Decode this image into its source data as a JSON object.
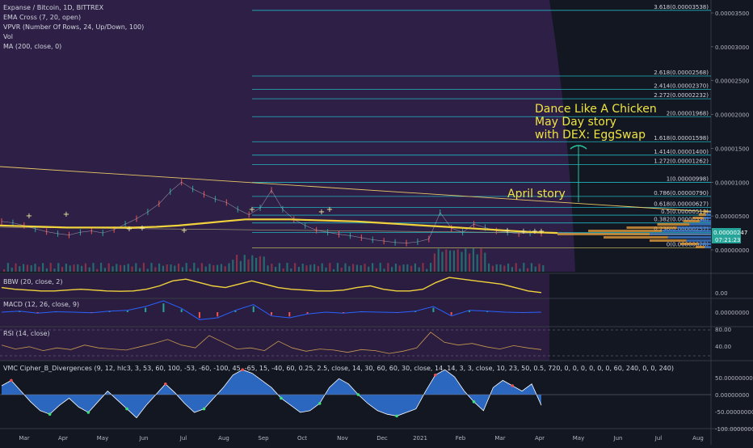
{
  "chart_data": {
    "type": "line",
    "symbol_title": "Expanse / Bitcoin, 1D, BITTREX",
    "indicators": [
      "EMA Cross (7, 20, open)",
      "VPVR (Number Of Rows, 24, Up/Down, 100)",
      "Vol",
      "MA (200, close, 0)"
    ],
    "x_ticks": [
      "Mar",
      "Apr",
      "May",
      "Jun",
      "Jul",
      "Aug",
      "Sep",
      "Oct",
      "Nov",
      "Dec",
      "2021",
      "Feb",
      "Mar",
      "Apr",
      "May",
      "Jun",
      "Jul",
      "Aug"
    ],
    "y_ticks": [
      "0.00003500",
      "0.00003000",
      "0.00002500",
      "0.00002000",
      "0.00001500",
      "0.00001000",
      "0.00000500",
      "0.00000000"
    ],
    "price_label": "0.00000247",
    "countdown": "07:21:23",
    "fib_levels": [
      {
        "label": "3.618(0.00003538)",
        "value": 3.538e-05
      },
      {
        "label": "2.618(0.00002568)",
        "value": 2.568e-05
      },
      {
        "label": "2.414(0.00002370)",
        "value": 2.37e-05
      },
      {
        "label": "2.272(0.00002232)",
        "value": 2.232e-05
      },
      {
        "label": "2(0.00001968)",
        "value": 1.968e-05
      },
      {
        "label": "1.618(0.00001598)",
        "value": 1.598e-05
      },
      {
        "label": "1.414(0.00001400)",
        "value": 1.4e-05
      },
      {
        "label": "1.272(0.00001262)",
        "value": 1.262e-05
      },
      {
        "label": "1(0.00000998)",
        "value": 9.98e-06
      },
      {
        "label": "0.786(0.00000790)",
        "value": 7.9e-06
      },
      {
        "label": "0.618(0.00000627)",
        "value": 6.27e-06
      },
      {
        "label": "0.5(0.00000513)",
        "value": 5.13e-06
      },
      {
        "label": "0.382(0.00000398)",
        "value": 3.98e-06
      },
      {
        "label": "0.236(0.00000257)",
        "value": 2.57e-06
      },
      {
        "label": "0(0.00000028)",
        "value": 2.8e-07
      }
    ],
    "annotations": [
      {
        "lines": [
          "Dance Like A Chicken",
          "May Day story",
          "with DEX: EggSwap"
        ]
      },
      {
        "lines": [
          "April story"
        ]
      }
    ],
    "price_series": [
      4.2,
      4.0,
      3.6,
      3.1,
      2.7,
      2.4,
      2.2,
      2.6,
      2.8,
      2.5,
      3.0,
      3.8,
      4.6,
      5.6,
      6.8,
      8.6,
      10.0,
      9.0,
      8.2,
      7.5,
      7.0,
      6.0,
      5.2,
      6.2,
      8.8,
      6.0,
      4.5,
      3.6,
      2.9,
      2.6,
      2.3,
      2.1,
      1.8,
      1.5,
      1.3,
      1.1,
      1.0,
      1.2,
      1.6,
      5.5,
      3.2,
      2.6,
      3.8,
      3.3,
      2.8,
      2.6,
      2.4,
      2.5,
      2.47
    ],
    "ma200_series": [
      3.6,
      3.5,
      3.4,
      3.3,
      3.3,
      3.3,
      3.3,
      3.4,
      3.6,
      3.9,
      4.2,
      4.5,
      4.5,
      4.5,
      4.4,
      4.3,
      4.2,
      4.0,
      3.8,
      3.6,
      3.4,
      3.2,
      3.0,
      2.8,
      2.6,
      2.5
    ],
    "sub_panes": [
      {
        "label": "BBW (20, close, 2)",
        "y_ticks": [
          "0.00"
        ],
        "series": [
          0.5,
          0.4,
          0.35,
          0.3,
          0.3,
          0.35,
          0.4,
          0.35,
          0.3,
          0.28,
          0.3,
          0.4,
          0.6,
          0.9,
          1.0,
          0.8,
          0.6,
          0.5,
          0.7,
          0.9,
          0.7,
          0.5,
          0.4,
          0.35,
          0.3,
          0.3,
          0.35,
          0.5,
          0.6,
          0.4,
          0.3,
          0.3,
          0.4,
          0.8,
          1.1,
          1.0,
          0.9,
          0.8,
          0.7,
          0.5,
          0.3,
          0.2
        ]
      },
      {
        "label": "MACD (12, 26, close, 9)",
        "y_ticks": [
          "0.00000000"
        ],
        "series": [
          0,
          0.05,
          -0.05,
          0.02,
          0.0,
          -0.03,
          0.05,
          0.1,
          0.3,
          0.6,
          0.2,
          -0.4,
          -0.3,
          0.1,
          0.4,
          -0.2,
          -0.3,
          -0.1,
          0.0,
          -0.05,
          0.02,
          0.0,
          -0.02,
          0.05,
          0.3,
          -0.2,
          0.1,
          0.05,
          0.0,
          -0.02,
          0.0
        ]
      },
      {
        "label": "RSI (14, close)",
        "y_ticks": [
          "80.00",
          "40.00"
        ],
        "series": [
          55,
          48,
          52,
          45,
          50,
          47,
          55,
          50,
          48,
          46,
          52,
          58,
          65,
          55,
          50,
          72,
          60,
          48,
          50,
          45,
          62,
          50,
          44,
          48,
          46,
          42,
          47,
          45,
          40,
          44,
          50,
          78,
          60,
          55,
          58,
          52,
          48,
          54,
          50,
          47
        ]
      },
      {
        "label": "VMC Cipher_B_Divergences (9, 12, hlc3, 3, 53, 60, 100, -53, -60, -100, 45, -65, 15, -40, 60, 0.25, 2.5, close, 14, 30, 60, 60, 30, close, 14, 14, 3, 3, close, 10, 23, 50, 0.5, 720, 0, 0, 0, 0, 0, 0, 60, 240, 0, 0, 240)",
        "y_ticks": [
          "50.00000000",
          "0.00000000",
          "-50.00000000",
          "-100.00000000"
        ],
        "series": [
          25,
          40,
          10,
          -20,
          -45,
          -55,
          -30,
          -10,
          -35,
          -50,
          -20,
          10,
          -15,
          -40,
          -65,
          -30,
          0,
          30,
          5,
          -25,
          -50,
          -40,
          -10,
          20,
          55,
          70,
          60,
          40,
          20,
          -10,
          -30,
          -50,
          -45,
          -25,
          20,
          45,
          30,
          0,
          -25,
          -45,
          -55,
          -60,
          -50,
          -40,
          10,
          55,
          70,
          50,
          10,
          -20,
          -45,
          20,
          40,
          25,
          10,
          30,
          -30
        ]
      }
    ]
  }
}
